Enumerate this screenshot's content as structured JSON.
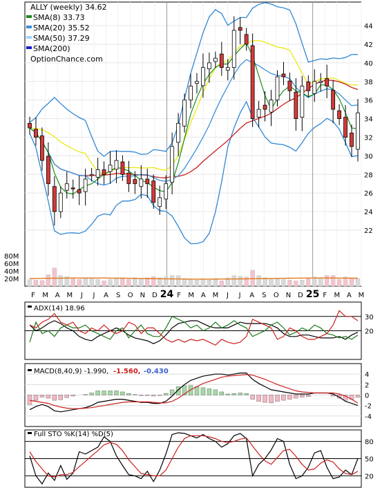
{
  "chart_data": [
    {
      "type": "candlestick",
      "title": "ALLY (weekly) 34.62",
      "legend": [
        {
          "label": "SMA(8) 33.73",
          "color": "#1a8c1a"
        },
        {
          "label": "SMA(20) 35.52",
          "color": "#3b8fd9"
        },
        {
          "label": "SMA(50) 37.29",
          "color": "#9fd3f5"
        },
        {
          "label": "SMA(200)",
          "color": "#1a1acc"
        }
      ],
      "watermark": "OptionChance.com",
      "price_ticks": [
        22,
        24,
        26,
        28,
        30,
        32,
        34,
        36,
        38,
        40,
        42,
        44
      ],
      "volume_ticks": [
        "20M",
        "40M",
        "60M",
        "80M"
      ],
      "x_labels": [
        "F",
        "M",
        "A",
        "M",
        "J",
        "J",
        "A",
        "S",
        "O",
        "N",
        "D",
        "24",
        "F",
        "M",
        "A",
        "M",
        "J",
        "J",
        "A",
        "S",
        "O",
        "N",
        "D",
        "25",
        "F",
        "M",
        "A",
        "M"
      ],
      "close": [
        33,
        32,
        29.5,
        27,
        24,
        26,
        27,
        26.5,
        26,
        27.5,
        28,
        28.5,
        28,
        29,
        29.5,
        28,
        27,
        27,
        27.5,
        27,
        25,
        25.5,
        27,
        31,
        33.5,
        36,
        37.5,
        38,
        39.5,
        40,
        40.5,
        39.5,
        39.5,
        43.5,
        43.5,
        42,
        34,
        35,
        35,
        36,
        38.5,
        38.5,
        37,
        34,
        37.5,
        37,
        38,
        38,
        37.5,
        35,
        34,
        32,
        31,
        34.62
      ],
      "volume_m": [
        17,
        16,
        15,
        30,
        48,
        28,
        25,
        20,
        18,
        20,
        22,
        18,
        14,
        18,
        20,
        22,
        18,
        22,
        20,
        22,
        25,
        22,
        24,
        28,
        28,
        20,
        18,
        16,
        18,
        16,
        20,
        14,
        22,
        28,
        26,
        24,
        42,
        28,
        22,
        18,
        20,
        18,
        16,
        14,
        16,
        20,
        24,
        22,
        28,
        28,
        18,
        24,
        22,
        20
      ],
      "volume_avg_m": 20
    },
    {
      "type": "line",
      "title": "ADX(14) 18.96",
      "y_ticks": [
        20,
        30
      ],
      "series": [
        {
          "name": "ADX(14) 18.96",
          "color": "#000000",
          "values": [
            24,
            20,
            22,
            25,
            27,
            25,
            22,
            20,
            16,
            14,
            13,
            16,
            18,
            20,
            22,
            20,
            17,
            15,
            14,
            13,
            11,
            13,
            17,
            22,
            25,
            26,
            27,
            27,
            25,
            23,
            22,
            22,
            22,
            24,
            26,
            25,
            25,
            25,
            25,
            24,
            22,
            18,
            16,
            16,
            17,
            17,
            16,
            15,
            15,
            15,
            16,
            14,
            17,
            19
          ]
        },
        {
          "color": "#1a7a1a",
          "values": [
            12,
            26,
            18,
            20,
            16,
            22,
            24,
            22,
            22,
            24,
            20,
            18,
            16,
            14,
            20,
            22,
            15,
            20,
            24,
            18,
            16,
            16,
            22,
            30,
            28,
            26,
            22,
            24,
            20,
            22,
            26,
            22,
            24,
            27,
            24,
            22,
            16,
            18,
            20,
            24,
            26,
            22,
            17,
            19,
            22,
            20,
            24,
            22,
            18,
            17,
            15,
            16,
            14,
            17
          ]
        },
        {
          "color": "#cc1f1f",
          "values": [
            24,
            22,
            26,
            28,
            32,
            26,
            24,
            26,
            20,
            18,
            22,
            20,
            24,
            20,
            18,
            20,
            26,
            24,
            18,
            22,
            22,
            18,
            14,
            12,
            14,
            12,
            14,
            13,
            14,
            12,
            10,
            14,
            12,
            11,
            12,
            16,
            28,
            26,
            24,
            22,
            14,
            16,
            22,
            20,
            16,
            14,
            14,
            16,
            18,
            24,
            34,
            30,
            30,
            27
          ]
        }
      ]
    },
    {
      "type": "line",
      "title": "MACD(8,40,9) -1.990,",
      "subtitle_values": [
        {
          "text": "-1.560,",
          "color": "#cc1f1f"
        },
        {
          "text": "-0.430",
          "color": "#3a5fcc"
        }
      ],
      "y_ticks": [
        -4,
        -2,
        0,
        2,
        4
      ],
      "series": [
        {
          "color": "#000000",
          "values": [
            -2.8,
            -2.2,
            -1.8,
            -2.2,
            -3.0,
            -3.2,
            -3.0,
            -2.8,
            -2.6,
            -2.4,
            -2.0,
            -1.4,
            -1.2,
            -1.0,
            -0.8,
            -0.8,
            -1.0,
            -1.2,
            -1.4,
            -1.4,
            -1.6,
            -1.6,
            -1.2,
            -0.2,
            1.0,
            2.0,
            2.8,
            3.2,
            3.6,
            3.8,
            4.0,
            4.0,
            3.8,
            4.0,
            4.2,
            4.2,
            3.0,
            2.2,
            1.6,
            1.0,
            0.8,
            0.6,
            0.4,
            0.2,
            0.2,
            0.2,
            0.4,
            0.4,
            0.4,
            0.2,
            -0.4,
            -1.2,
            -1.6,
            -1.99
          ]
        },
        {
          "color": "#cc1f1f",
          "values": [
            -1.0,
            -1.2,
            -1.4,
            -1.6,
            -2.0,
            -2.3,
            -2.5,
            -2.6,
            -2.6,
            -2.5,
            -2.4,
            -2.2,
            -2.0,
            -1.8,
            -1.6,
            -1.4,
            -1.3,
            -1.3,
            -1.3,
            -1.3,
            -1.4,
            -1.5,
            -1.5,
            -1.2,
            -0.6,
            0.2,
            1.0,
            1.6,
            2.2,
            2.6,
            3.0,
            3.4,
            3.6,
            3.7,
            3.8,
            3.9,
            3.8,
            3.4,
            3.0,
            2.5,
            2.0,
            1.6,
            1.2,
            0.8,
            0.6,
            0.5,
            0.4,
            0.4,
            0.4,
            0.4,
            0.2,
            -0.2,
            -0.8,
            -1.56
          ]
        }
      ]
    },
    {
      "type": "line",
      "title": "Full STO %K(14) %D(5)",
      "y_ticks": [
        20,
        50,
        80
      ],
      "series": [
        {
          "color": "#000000",
          "values": [
            55,
            20,
            6,
            25,
            12,
            38,
            14,
            25,
            62,
            58,
            64,
            70,
            88,
            80,
            55,
            38,
            22,
            20,
            15,
            28,
            10,
            30,
            58,
            92,
            95,
            94,
            90,
            86,
            92,
            85,
            80,
            70,
            76,
            90,
            94,
            85,
            20,
            40,
            50,
            65,
            85,
            80,
            40,
            15,
            20,
            35,
            60,
            64,
            35,
            15,
            18,
            30,
            22,
            50
          ]
        },
        {
          "color": "#cc1f1f",
          "values": [
            62,
            45,
            32,
            20,
            18,
            22,
            22,
            26,
            36,
            45,
            55,
            64,
            74,
            78,
            75,
            64,
            48,
            36,
            24,
            22,
            20,
            20,
            30,
            50,
            70,
            85,
            90,
            90,
            90,
            88,
            85,
            80,
            78,
            80,
            84,
            86,
            72,
            58,
            46,
            40,
            52,
            64,
            66,
            54,
            40,
            30,
            32,
            42,
            48,
            44,
            32,
            24,
            22,
            28
          ]
        }
      ]
    }
  ]
}
